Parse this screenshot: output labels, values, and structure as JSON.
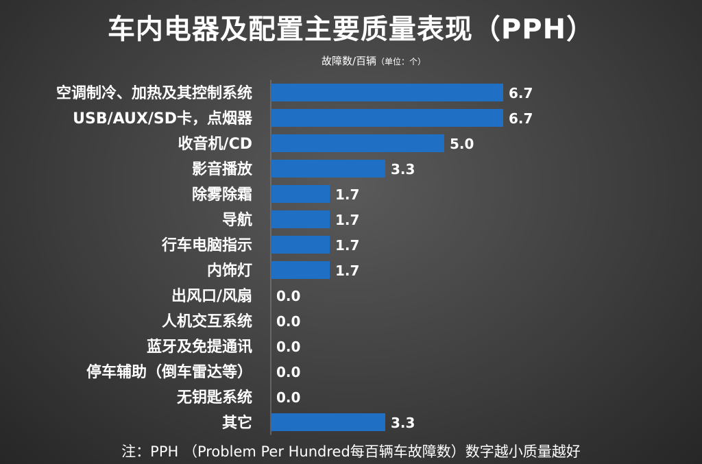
{
  "title": "车内电器及配置主要质量表现（PPH）",
  "subtitle": "故障数/百辆",
  "subtitle_unit": "（单位：个）",
  "note": "注：PPH （Problem Per Hundred每百辆车故障数）数字越小质量越好",
  "colors": {
    "bar": "#1f6fc5",
    "text": "#ffffff"
  },
  "chart_data": {
    "type": "bar",
    "orientation": "horizontal",
    "title": "车内电器及配置主要质量表现（PPH）",
    "xlabel": "故障数/百辆（单位：个）",
    "ylabel": "",
    "xlim": [
      0,
      10
    ],
    "grid": false,
    "categories": [
      "空调制冷、加热及其控制系统",
      "USB/AUX/SD卡，点烟器",
      "收音机/CD",
      "影音播放",
      "除雾除霜",
      "导航",
      "行车电脑指示",
      "内饰灯",
      "出风口/风扇",
      "人机交互系统",
      "蓝牙及免提通讯",
      "停车辅助（倒车雷达等）",
      "无钥匙系统",
      "其它"
    ],
    "values": [
      6.7,
      6.7,
      5.0,
      3.3,
      1.7,
      1.7,
      1.7,
      1.7,
      0.0,
      0.0,
      0.0,
      0.0,
      0.0,
      3.3
    ],
    "value_labels": [
      "6.7",
      "6.7",
      "5.0",
      "3.3",
      "1.7",
      "1.7",
      "1.7",
      "1.7",
      "0.0",
      "0.0",
      "0.0",
      "0.0",
      "0.0",
      "3.3"
    ]
  }
}
